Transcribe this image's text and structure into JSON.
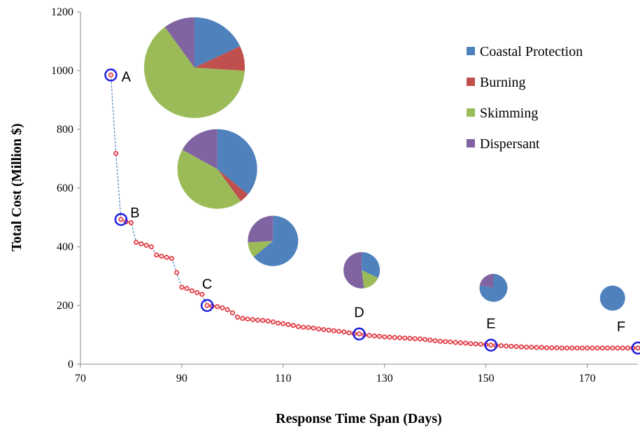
{
  "chart_data": {
    "type": "scatter",
    "xlabel": "Response Time Span (Days)",
    "ylabel": "Total Cost (Million $)",
    "xlim": [
      70,
      180
    ],
    "ylim": [
      0,
      1200
    ],
    "x_ticks": [
      "70",
      "90",
      "110",
      "130",
      "150",
      "170"
    ],
    "y_ticks": [
      "0",
      "200",
      "400",
      "600",
      "800",
      "1000",
      "1200"
    ],
    "grid": false,
    "legend_position": "top-right",
    "legend": [
      {
        "label": "Coastal Protection",
        "color": "#4f81bd"
      },
      {
        "label": "Burning",
        "color": "#c0504d"
      },
      {
        "label": "Skimming",
        "color": "#9bbb59"
      },
      {
        "label": "Dispersant",
        "color": "#8064a2"
      }
    ],
    "series": [
      {
        "marker_color": "#e0202a",
        "line_color": "#4f81bd",
        "points": [
          [
            76,
            985
          ],
          [
            77,
            718
          ],
          [
            78,
            493
          ],
          [
            79,
            485
          ],
          [
            80,
            482
          ],
          [
            81,
            415
          ],
          [
            82,
            410
          ],
          [
            83,
            405
          ],
          [
            84,
            400
          ],
          [
            85,
            372
          ],
          [
            86,
            368
          ],
          [
            87,
            364
          ],
          [
            88,
            360
          ],
          [
            89,
            312
          ],
          [
            90,
            262
          ],
          [
            91,
            258
          ],
          [
            92,
            250
          ],
          [
            93,
            244
          ],
          [
            94,
            238
          ],
          [
            95,
            200
          ],
          [
            96,
            198
          ],
          [
            97,
            196
          ],
          [
            98,
            192
          ],
          [
            99,
            186
          ],
          [
            100,
            175
          ],
          [
            101,
            160
          ],
          [
            102,
            156
          ],
          [
            103,
            154
          ],
          [
            104,
            152
          ],
          [
            105,
            150
          ],
          [
            106,
            149
          ],
          [
            107,
            147
          ],
          [
            108,
            144
          ],
          [
            109,
            140
          ],
          [
            110,
            138
          ],
          [
            111,
            135
          ],
          [
            112,
            132
          ],
          [
            113,
            128
          ],
          [
            114,
            126
          ],
          [
            115,
            125
          ],
          [
            116,
            123
          ],
          [
            117,
            120
          ],
          [
            118,
            118
          ],
          [
            119,
            116
          ],
          [
            120,
            114
          ],
          [
            121,
            112
          ],
          [
            122,
            110
          ],
          [
            123,
            107
          ],
          [
            124,
            104
          ],
          [
            125,
            103
          ],
          [
            126,
            100
          ],
          [
            127,
            98
          ],
          [
            128,
            96
          ],
          [
            129,
            95
          ],
          [
            130,
            93
          ],
          [
            131,
            92
          ],
          [
            132,
            91
          ],
          [
            133,
            90
          ],
          [
            134,
            89
          ],
          [
            135,
            88
          ],
          [
            136,
            87
          ],
          [
            137,
            86
          ],
          [
            138,
            84
          ],
          [
            139,
            82
          ],
          [
            140,
            80
          ],
          [
            141,
            78
          ],
          [
            142,
            77
          ],
          [
            143,
            76
          ],
          [
            144,
            74
          ],
          [
            145,
            73
          ],
          [
            146,
            72
          ],
          [
            147,
            70
          ],
          [
            148,
            69
          ],
          [
            149,
            68
          ],
          [
            150,
            67
          ],
          [
            151,
            65
          ],
          [
            152,
            64
          ],
          [
            153,
            63
          ],
          [
            154,
            62
          ],
          [
            155,
            61
          ],
          [
            156,
            60
          ],
          [
            157,
            59
          ],
          [
            158,
            58
          ],
          [
            159,
            58
          ],
          [
            160,
            57
          ],
          [
            161,
            57
          ],
          [
            162,
            56
          ],
          [
            163,
            56
          ],
          [
            164,
            56
          ],
          [
            165,
            55
          ],
          [
            166,
            55
          ],
          [
            167,
            55
          ],
          [
            168,
            55
          ],
          [
            169,
            55
          ],
          [
            170,
            55
          ],
          [
            171,
            55
          ],
          [
            172,
            55
          ],
          [
            173,
            55
          ],
          [
            174,
            55
          ],
          [
            175,
            55
          ],
          [
            176,
            55
          ],
          [
            177,
            55
          ],
          [
            178,
            55
          ],
          [
            179,
            55
          ],
          [
            180,
            55
          ]
        ]
      }
    ],
    "highlighted_points": [
      {
        "label": "A",
        "x": 76,
        "y": 985
      },
      {
        "label": "B",
        "x": 78,
        "y": 493
      },
      {
        "label": "C",
        "x": 95,
        "y": 200
      },
      {
        "label": "D",
        "x": 125,
        "y": 103
      },
      {
        "label": "E",
        "x": 151,
        "y": 65
      },
      {
        "label": "F",
        "x": 180,
        "y": 55
      }
    ],
    "pies": [
      {
        "for_point": "A",
        "x": 92.5,
        "y": 1010,
        "shares": {
          "Coastal Protection": 0.18,
          "Burning": 0.08,
          "Skimming": 0.64,
          "Dispersant": 0.1
        }
      },
      {
        "for_point": "B",
        "x": 97,
        "y": 665,
        "shares": {
          "Coastal Protection": 0.36,
          "Burning": 0.04,
          "Skimming": 0.43,
          "Dispersant": 0.17
        }
      },
      {
        "for_point": "C",
        "x": 108,
        "y": 420,
        "shares": {
          "Coastal Protection": 0.64,
          "Burning": 0.0,
          "Skimming": 0.1,
          "Dispersant": 0.26
        }
      },
      {
        "for_point": "D",
        "x": 125.5,
        "y": 320,
        "shares": {
          "Coastal Protection": 0.32,
          "Burning": 0.0,
          "Skimming": 0.16,
          "Dispersant": 0.52
        }
      },
      {
        "for_point": "E",
        "x": 151.5,
        "y": 260,
        "shares": {
          "Coastal Protection": 0.78,
          "Burning": 0.0,
          "Skimming": 0.0,
          "Dispersant": 0.22
        }
      },
      {
        "for_point": "F",
        "x": 175,
        "y": 225,
        "shares": {
          "Coastal Protection": 1.0,
          "Burning": 0.0,
          "Skimming": 0.0,
          "Dispersant": 0.0
        }
      }
    ]
  }
}
